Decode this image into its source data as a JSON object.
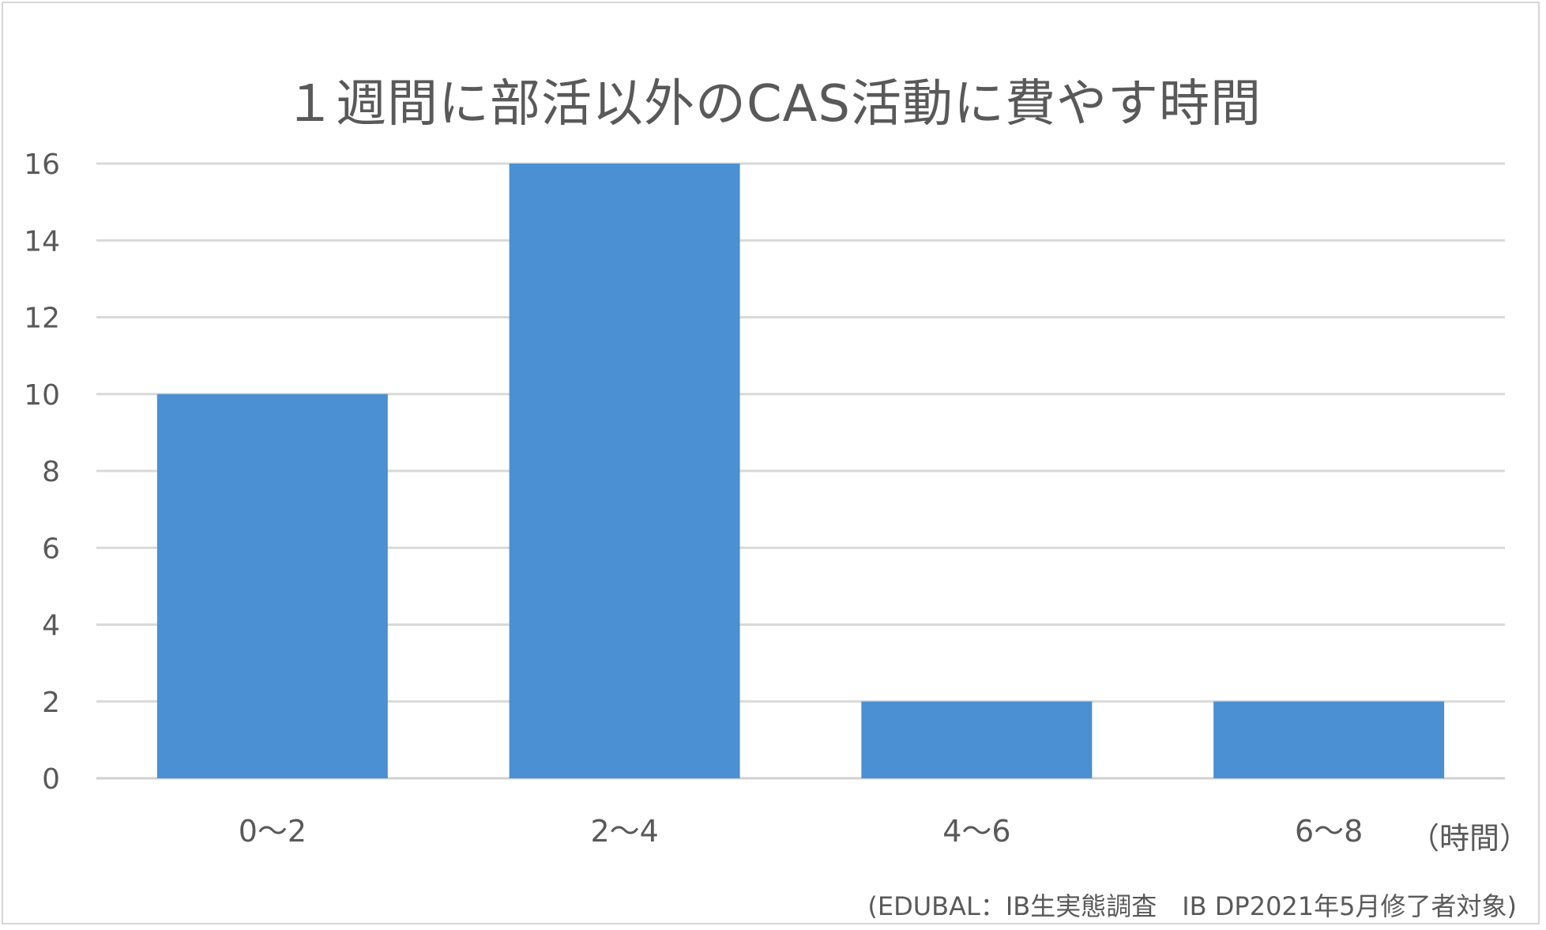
{
  "chart_data": {
    "type": "bar",
    "title": "１週間に部活以外のCAS活動に費やす時間",
    "categories": [
      "0～2",
      "2～4",
      "4～6",
      "6～8"
    ],
    "values": [
      10,
      16,
      2,
      2
    ],
    "ylim": [
      0,
      16
    ],
    "yticks": [
      0,
      2,
      4,
      6,
      8,
      10,
      12,
      14,
      16
    ],
    "x_unit_label": "（時間）",
    "grid": true,
    "bar_color": "#4a90d2",
    "source": "(EDUBAL：IB生実態調査　IB DP2021年5月修了者対象)"
  }
}
